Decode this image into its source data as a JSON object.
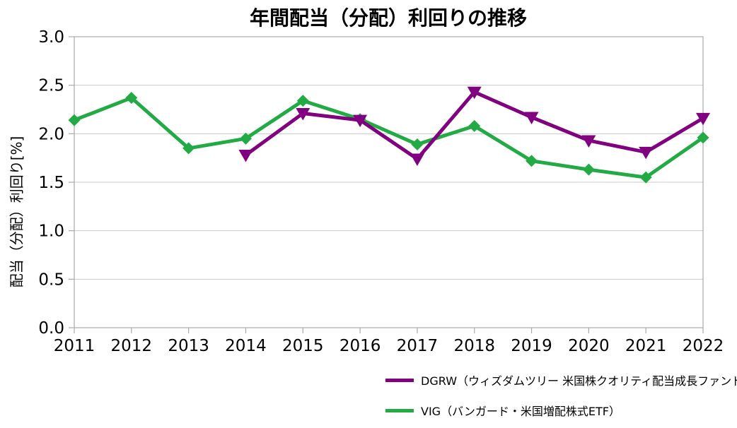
{
  "title": "年間配当（分配）利回りの推移",
  "chart_data": {
    "type": "line",
    "title": "年間配当（分配）利回りの推移",
    "xlabel": "",
    "ylabel": "配当（分配）利回り[%]",
    "x": [
      2011,
      2012,
      2013,
      2014,
      2015,
      2016,
      2017,
      2018,
      2019,
      2020,
      2021,
      2022
    ],
    "ylim": [
      0.0,
      3.0
    ],
    "ytick_step": 0.5,
    "grid": "horizontal",
    "legend_position": "bottom-right",
    "series": [
      {
        "name": "DGRW",
        "legend_label": "DGRW（ウィズダムツリー 米国株クオリティ配当成長ファンド）",
        "color": "#800080",
        "marker": "triangle-down",
        "values": [
          null,
          null,
          null,
          1.78,
          2.21,
          2.14,
          1.74,
          2.43,
          2.17,
          1.93,
          1.81,
          2.16
        ]
      },
      {
        "name": "VIG",
        "legend_label": "VIG（バンガード・米国増配株式ETF）",
        "color": "#22AA44",
        "marker": "diamond",
        "values": [
          2.14,
          2.37,
          1.85,
          1.95,
          2.34,
          2.15,
          1.89,
          2.08,
          1.72,
          1.63,
          1.55,
          1.96
        ]
      }
    ]
  }
}
